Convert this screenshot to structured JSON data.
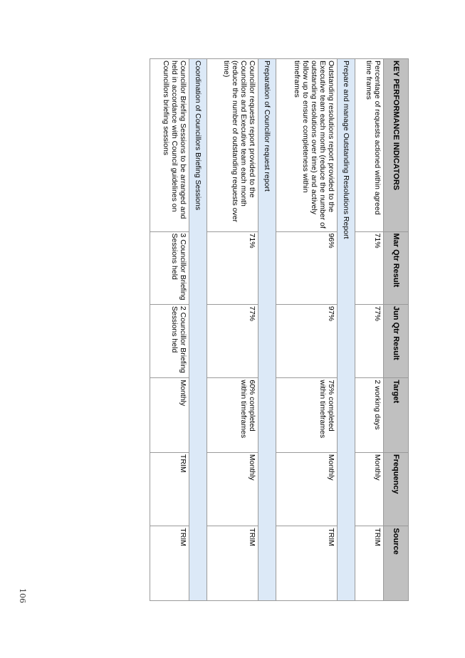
{
  "table": {
    "headers": [
      "KEY PERFORMANCE INDICATORS",
      "Mar Qtr Result",
      "Jun Qtr Result",
      "Target",
      "Frequency",
      "Source"
    ],
    "rows": [
      {
        "type": "data",
        "cells": [
          "Percentage of requests actioned within agreed time frames",
          "71%",
          "77%",
          "2 working days",
          "Monthly",
          "TRIM"
        ]
      },
      {
        "type": "section",
        "title": "Prepare and manage Outstanding Resolutions Report"
      },
      {
        "type": "data",
        "cells": [
          "Outstanding resolutions report provided to the Executive team each month (reduce the number of outstanding resolutions over time) and actively follow up to ensure completeness within timeframes",
          "96%",
          "97%",
          "75% completed within timeframes",
          "Monthly",
          "TRIM"
        ]
      },
      {
        "type": "section",
        "title": "Preparation of Councillor request report"
      },
      {
        "type": "data",
        "cells": [
          "Councillor requests report provided to the Councillors and Executive team each month (reduce the number of outstanding requests over time)",
          "71%",
          "77%",
          "60% completed within timeframes",
          "Monthly",
          "TRIM"
        ]
      },
      {
        "type": "section",
        "title": "Coordination of Councillors Briefing Sessions"
      },
      {
        "type": "data",
        "cells": [
          "Councillor Briefing Sessions to be arranged and held in accordance with Council guidelines on Councillors briefing sessions",
          "3 Councillor Briefing Sessions held",
          "2 Councillor Briefing Sessions held",
          "Monthly",
          "TRIM",
          "TRIM"
        ]
      }
    ]
  },
  "page_number": "106"
}
